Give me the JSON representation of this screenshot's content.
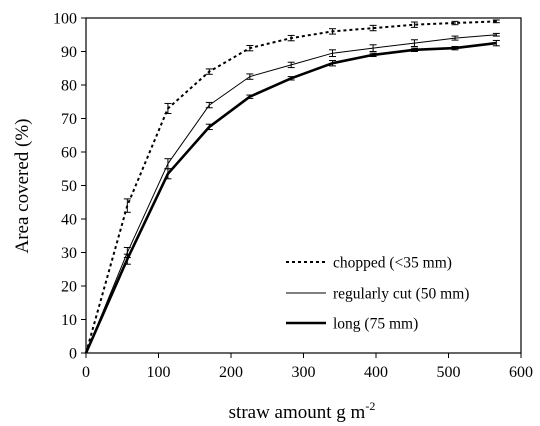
{
  "chart_data": {
    "type": "line",
    "xlabel": "straw amount g m",
    "xlabel_superscript": "-2",
    "ylabel": "Area covered (%)",
    "xlim": [
      0,
      600
    ],
    "ylim": [
      0,
      100
    ],
    "xticks": [
      "0",
      "100",
      "200",
      "300",
      "400",
      "500",
      "600"
    ],
    "yticks": [
      "0",
      "10",
      "20",
      "30",
      "40",
      "50",
      "60",
      "70",
      "80",
      "90",
      "100"
    ],
    "grid": false,
    "legend_position": "bottom-right",
    "series": [
      {
        "name": "chopped (<35 mm)",
        "style": "dotted",
        "x": [
          0,
          57,
          113,
          170,
          226,
          283,
          340,
          396,
          453,
          509,
          566
        ],
        "y": [
          0,
          44,
          73,
          84,
          91,
          94,
          96,
          97,
          98,
          98.5,
          99
        ],
        "err": [
          0,
          2,
          1.5,
          0.8,
          0.8,
          0.8,
          0.8,
          0.8,
          0.8,
          0.5,
          0.4
        ]
      },
      {
        "name": "regularly cut (50 mm)",
        "style": "thin",
        "x": [
          0,
          57,
          113,
          170,
          226,
          283,
          340,
          396,
          453,
          509,
          566
        ],
        "y": [
          0,
          30,
          56.5,
          74,
          82.5,
          86,
          89.5,
          91,
          92.5,
          94,
          95
        ],
        "err": [
          0,
          1.5,
          1.5,
          0.8,
          0.8,
          0.8,
          1,
          1,
          1,
          0.6,
          0.4
        ]
      },
      {
        "name": "long (75 mm)",
        "style": "thick",
        "x": [
          0,
          57,
          113,
          170,
          226,
          283,
          340,
          396,
          453,
          509,
          566
        ],
        "y": [
          0,
          28,
          53.5,
          67.5,
          76.5,
          82,
          86.5,
          89,
          90.5,
          91,
          92.5
        ],
        "err": [
          0,
          1.5,
          1.5,
          0.8,
          0.5,
          0.5,
          0.8,
          0.5,
          0.5,
          0.5,
          0.8
        ]
      }
    ]
  }
}
